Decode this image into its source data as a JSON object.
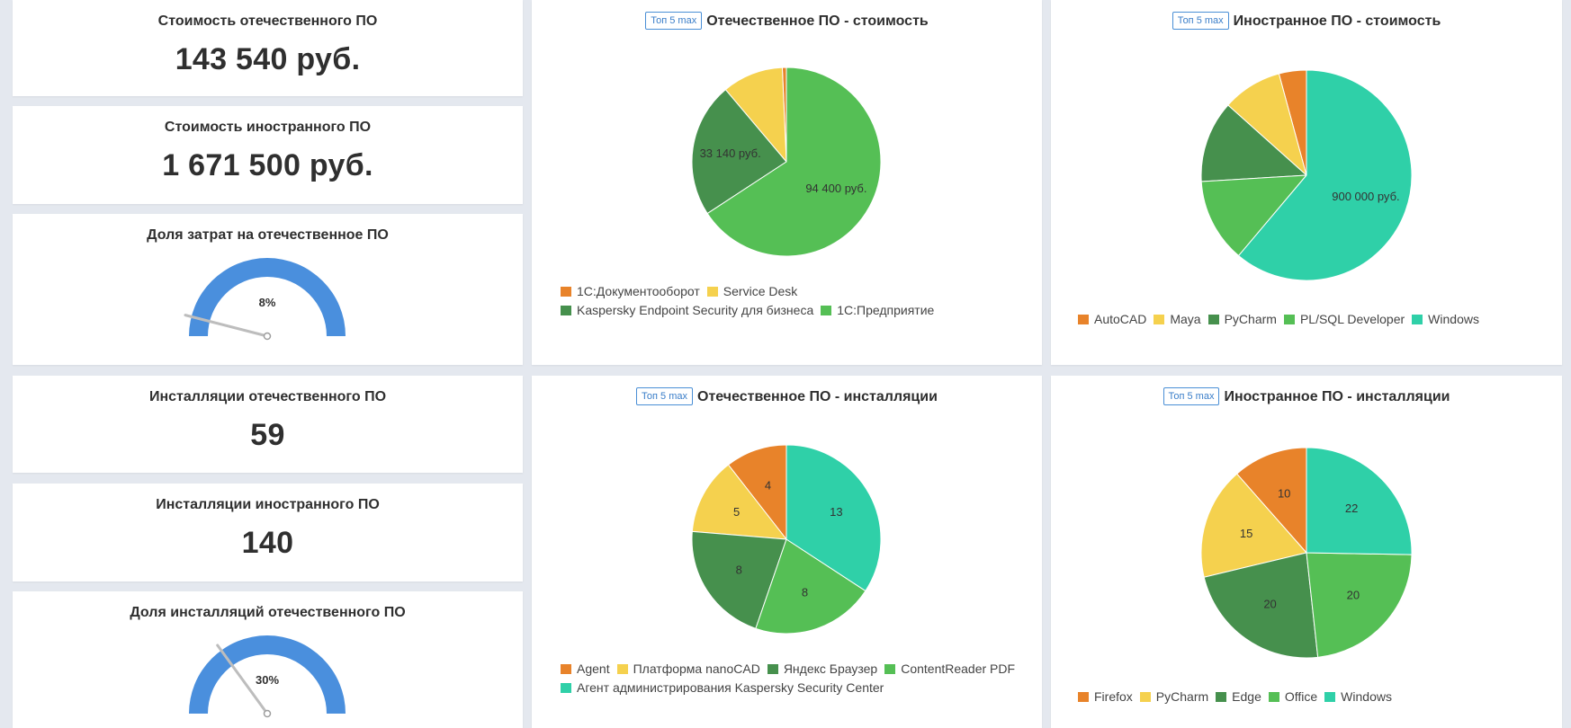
{
  "kpis": {
    "domestic_cost": {
      "title": "Стоимость отечественного ПО",
      "value": "143 540 руб."
    },
    "foreign_cost": {
      "title": "Стоимость иностранного ПО",
      "value": "1 671 500 руб."
    },
    "domestic_installs": {
      "title": "Инсталляции отечественного ПО",
      "value": "59"
    },
    "foreign_installs": {
      "title": "Инсталляции иностранного ПО",
      "value": "140"
    }
  },
  "gauges": {
    "cost_share": {
      "title": "Доля затрат на отечественное ПО",
      "label": "8%",
      "value": 0.08
    },
    "install_share": {
      "title": "Доля инсталляций отечественного ПО",
      "label": "30%",
      "value": 0.3
    }
  },
  "colors": {
    "orange": "#e8832a",
    "yellow": "#f5d14e",
    "dark_green": "#46904d",
    "green": "#55bf55",
    "teal": "#2fd0a8",
    "gauge_fill": "#4a8fdd",
    "needle": "#bdbdbd"
  },
  "charts": {
    "domestic_cost": {
      "badge": "Топ 5 max",
      "title": "Отечественное ПО - стоимость"
    },
    "foreign_cost": {
      "badge": "Топ 5 max",
      "title": "Иностранное ПО - стоимость"
    },
    "domestic_installs": {
      "badge": "Топ 5 max",
      "title": "Отечественное ПО - инсталляции"
    },
    "foreign_installs": {
      "badge": "Топ 5 max",
      "title": "Иностранное ПО - инсталляции"
    }
  },
  "chart_data": [
    {
      "id": "domestic_cost",
      "type": "pie",
      "title": "Отечественное ПО - стоимость",
      "categories": [
        "1С:Документооборот",
        "Service Desk",
        "Kaspersky Endpoint Security для бизнеса",
        "1С:Предприятие"
      ],
      "values": [
        1000,
        15000,
        33140,
        94400
      ],
      "data_labels": [
        "",
        "",
        "33 140 руб.",
        "94 400 руб."
      ],
      "colors": [
        "#e8832a",
        "#f5d14e",
        "#46904d",
        "#55bf55"
      ]
    },
    {
      "id": "foreign_cost",
      "type": "pie",
      "title": "Иностранное ПО - стоимость",
      "categories": [
        "AutoCAD",
        "Maya",
        "PyCharm",
        "PL/SQL Developer",
        "Windows"
      ],
      "values": [
        62000,
        135000,
        185000,
        190000,
        900000
      ],
      "data_labels": [
        "",
        "",
        "",
        "",
        "900 000 руб."
      ],
      "colors": [
        "#e8832a",
        "#f5d14e",
        "#46904d",
        "#55bf55",
        "#2fd0a8"
      ]
    },
    {
      "id": "domestic_installs",
      "type": "pie",
      "title": "Отечественное ПО - инсталляции",
      "categories": [
        "Agent",
        "Платформа nanoCAD",
        "Яндекс Браузер",
        "ContentReader PDF",
        "Агент администрирования Kaspersky Security Center"
      ],
      "values": [
        4,
        5,
        8,
        8,
        13
      ],
      "data_labels": [
        "4",
        "5",
        "8",
        "8",
        "13"
      ],
      "colors": [
        "#e8832a",
        "#f5d14e",
        "#46904d",
        "#55bf55",
        "#2fd0a8"
      ]
    },
    {
      "id": "foreign_installs",
      "type": "pie",
      "title": "Иностранное ПО - инсталляции",
      "categories": [
        "Firefox",
        "PyCharm",
        "Edge",
        "Office",
        "Windows"
      ],
      "values": [
        10,
        15,
        20,
        20,
        22
      ],
      "data_labels": [
        "10",
        "15",
        "20",
        "20",
        "22"
      ],
      "colors": [
        "#e8832a",
        "#f5d14e",
        "#46904d",
        "#55bf55",
        "#2fd0a8"
      ]
    }
  ]
}
